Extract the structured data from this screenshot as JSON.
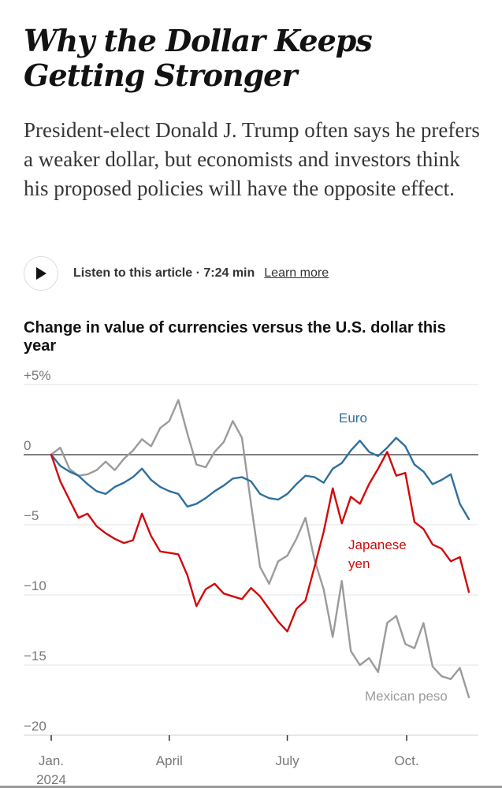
{
  "headline": "Why the Dollar Keeps Getting Stronger",
  "summary": "President-elect Donald J. Trump often says he prefers a weaker dollar, but economists and investors think his proposed policies will have the opposite effect.",
  "audio": {
    "listen_label": "Listen to this article · 7:24 min",
    "learn_more": "Learn more",
    "play_icon": "play-icon"
  },
  "colors": {
    "euro": "#2e6f9e",
    "yen": "#d10a0a",
    "peso": "#9b9b9b",
    "zero_line": "#555555",
    "grid": "#e6e6e6"
  },
  "chart_data": {
    "type": "line",
    "title": "Change in value of currencies versus the U.S. dollar this year",
    "xlabel": "",
    "ylabel": "",
    "ylim": [
      -20,
      5
    ],
    "y_ticks": [
      5,
      0,
      -5,
      -10,
      -15,
      -20
    ],
    "y_tick_labels": [
      "+5%",
      "0",
      "−5",
      "−10",
      "−15",
      "−20"
    ],
    "x_ticks": [
      "2024-01-01",
      "2024-04-01",
      "2024-07-01",
      "2024-10-01"
    ],
    "x_tick_labels": [
      "Jan.\n2024",
      "April",
      "July",
      "Oct."
    ],
    "series": [
      {
        "name": "Euro",
        "color_key": "euro",
        "points": [
          [
            "2024-01-01",
            0.0
          ],
          [
            "2024-01-08",
            -0.8
          ],
          [
            "2024-01-15",
            -1.2
          ],
          [
            "2024-01-22",
            -1.5
          ],
          [
            "2024-01-29",
            -2.1
          ],
          [
            "2024-02-05",
            -2.6
          ],
          [
            "2024-02-12",
            -2.8
          ],
          [
            "2024-02-19",
            -2.3
          ],
          [
            "2024-02-26",
            -2.0
          ],
          [
            "2024-03-04",
            -1.6
          ],
          [
            "2024-03-11",
            -1.0
          ],
          [
            "2024-03-18",
            -1.8
          ],
          [
            "2024-03-25",
            -2.3
          ],
          [
            "2024-04-01",
            -2.6
          ],
          [
            "2024-04-08",
            -2.8
          ],
          [
            "2024-04-15",
            -3.7
          ],
          [
            "2024-04-22",
            -3.5
          ],
          [
            "2024-04-29",
            -3.1
          ],
          [
            "2024-05-06",
            -2.6
          ],
          [
            "2024-05-13",
            -2.2
          ],
          [
            "2024-05-20",
            -1.7
          ],
          [
            "2024-05-27",
            -1.6
          ],
          [
            "2024-06-03",
            -1.9
          ],
          [
            "2024-06-10",
            -2.8
          ],
          [
            "2024-06-17",
            -3.1
          ],
          [
            "2024-06-24",
            -3.2
          ],
          [
            "2024-07-01",
            -2.8
          ],
          [
            "2024-07-08",
            -2.1
          ],
          [
            "2024-07-15",
            -1.5
          ],
          [
            "2024-07-22",
            -1.6
          ],
          [
            "2024-07-29",
            -2.0
          ],
          [
            "2024-08-05",
            -1.0
          ],
          [
            "2024-08-12",
            -0.6
          ],
          [
            "2024-08-19",
            0.3
          ],
          [
            "2024-08-26",
            1.0
          ],
          [
            "2024-09-02",
            0.2
          ],
          [
            "2024-09-09",
            -0.1
          ],
          [
            "2024-09-16",
            0.5
          ],
          [
            "2024-09-23",
            1.2
          ],
          [
            "2024-09-30",
            0.6
          ],
          [
            "2024-10-07",
            -0.7
          ],
          [
            "2024-10-14",
            -1.2
          ],
          [
            "2024-10-21",
            -2.1
          ],
          [
            "2024-10-28",
            -1.8
          ],
          [
            "2024-11-04",
            -1.4
          ],
          [
            "2024-11-11",
            -3.5
          ],
          [
            "2024-11-18",
            -4.6
          ]
        ]
      },
      {
        "name": "Japanese yen",
        "color_key": "yen",
        "points": [
          [
            "2024-01-01",
            0.0
          ],
          [
            "2024-01-08",
            -1.9
          ],
          [
            "2024-01-15",
            -3.2
          ],
          [
            "2024-01-22",
            -4.5
          ],
          [
            "2024-01-29",
            -4.2
          ],
          [
            "2024-02-05",
            -5.1
          ],
          [
            "2024-02-12",
            -5.6
          ],
          [
            "2024-02-19",
            -6.0
          ],
          [
            "2024-02-26",
            -6.3
          ],
          [
            "2024-03-04",
            -6.1
          ],
          [
            "2024-03-11",
            -4.2
          ],
          [
            "2024-03-18",
            -5.8
          ],
          [
            "2024-03-25",
            -6.9
          ],
          [
            "2024-04-01",
            -7.0
          ],
          [
            "2024-04-08",
            -7.1
          ],
          [
            "2024-04-15",
            -8.6
          ],
          [
            "2024-04-22",
            -10.8
          ],
          [
            "2024-04-29",
            -9.6
          ],
          [
            "2024-05-06",
            -9.2
          ],
          [
            "2024-05-13",
            -9.9
          ],
          [
            "2024-05-20",
            -10.1
          ],
          [
            "2024-05-27",
            -10.3
          ],
          [
            "2024-06-03",
            -9.5
          ],
          [
            "2024-06-10",
            -10.1
          ],
          [
            "2024-06-17",
            -11.0
          ],
          [
            "2024-06-24",
            -11.9
          ],
          [
            "2024-07-01",
            -12.6
          ],
          [
            "2024-07-08",
            -11.0
          ],
          [
            "2024-07-15",
            -10.4
          ],
          [
            "2024-07-22",
            -8.0
          ],
          [
            "2024-07-29",
            -5.5
          ],
          [
            "2024-08-05",
            -2.4
          ],
          [
            "2024-08-12",
            -4.9
          ],
          [
            "2024-08-19",
            -3.0
          ],
          [
            "2024-08-26",
            -3.5
          ],
          [
            "2024-09-02",
            -2.1
          ],
          [
            "2024-09-09",
            -1.0
          ],
          [
            "2024-09-16",
            0.2
          ],
          [
            "2024-09-23",
            -1.5
          ],
          [
            "2024-09-30",
            -1.3
          ],
          [
            "2024-10-07",
            -4.8
          ],
          [
            "2024-10-14",
            -5.3
          ],
          [
            "2024-10-21",
            -6.4
          ],
          [
            "2024-10-28",
            -6.7
          ],
          [
            "2024-11-04",
            -7.6
          ],
          [
            "2024-11-11",
            -7.3
          ],
          [
            "2024-11-18",
            -9.8
          ]
        ]
      },
      {
        "name": "Mexican peso",
        "color_key": "peso",
        "points": [
          [
            "2024-01-01",
            0.0
          ],
          [
            "2024-01-08",
            0.5
          ],
          [
            "2024-01-15",
            -1.0
          ],
          [
            "2024-01-22",
            -1.5
          ],
          [
            "2024-01-29",
            -1.4
          ],
          [
            "2024-02-05",
            -1.1
          ],
          [
            "2024-02-12",
            -0.5
          ],
          [
            "2024-02-19",
            -1.1
          ],
          [
            "2024-02-26",
            -0.3
          ],
          [
            "2024-03-04",
            0.3
          ],
          [
            "2024-03-11",
            1.1
          ],
          [
            "2024-03-18",
            0.6
          ],
          [
            "2024-03-25",
            1.9
          ],
          [
            "2024-04-01",
            2.4
          ],
          [
            "2024-04-08",
            3.9
          ],
          [
            "2024-04-15",
            1.5
          ],
          [
            "2024-04-22",
            -0.7
          ],
          [
            "2024-04-29",
            -0.9
          ],
          [
            "2024-05-06",
            0.2
          ],
          [
            "2024-05-13",
            0.9
          ],
          [
            "2024-05-20",
            2.4
          ],
          [
            "2024-05-27",
            1.2
          ],
          [
            "2024-06-03",
            -3.5
          ],
          [
            "2024-06-10",
            -8.0
          ],
          [
            "2024-06-17",
            -9.2
          ],
          [
            "2024-06-24",
            -7.6
          ],
          [
            "2024-07-01",
            -7.2
          ],
          [
            "2024-07-08",
            -6.0
          ],
          [
            "2024-07-15",
            -4.5
          ],
          [
            "2024-07-22",
            -7.5
          ],
          [
            "2024-07-29",
            -9.6
          ],
          [
            "2024-08-05",
            -13.0
          ],
          [
            "2024-08-12",
            -9.0
          ],
          [
            "2024-08-19",
            -14.0
          ],
          [
            "2024-08-26",
            -15.0
          ],
          [
            "2024-09-02",
            -14.5
          ],
          [
            "2024-09-09",
            -15.5
          ],
          [
            "2024-09-16",
            -12.0
          ],
          [
            "2024-09-23",
            -11.5
          ],
          [
            "2024-09-30",
            -13.5
          ],
          [
            "2024-10-07",
            -13.8
          ],
          [
            "2024-10-14",
            -12.0
          ],
          [
            "2024-10-21",
            -15.1
          ],
          [
            "2024-10-28",
            -15.8
          ],
          [
            "2024-11-04",
            -16.0
          ],
          [
            "2024-11-11",
            -15.2
          ],
          [
            "2024-11-18",
            -17.3
          ]
        ]
      }
    ],
    "labels": {
      "euro": "Euro",
      "yen_line1": "Japanese",
      "yen_line2": "yen",
      "peso": "Mexican peso"
    },
    "grid": true,
    "legend": "direct labels"
  }
}
